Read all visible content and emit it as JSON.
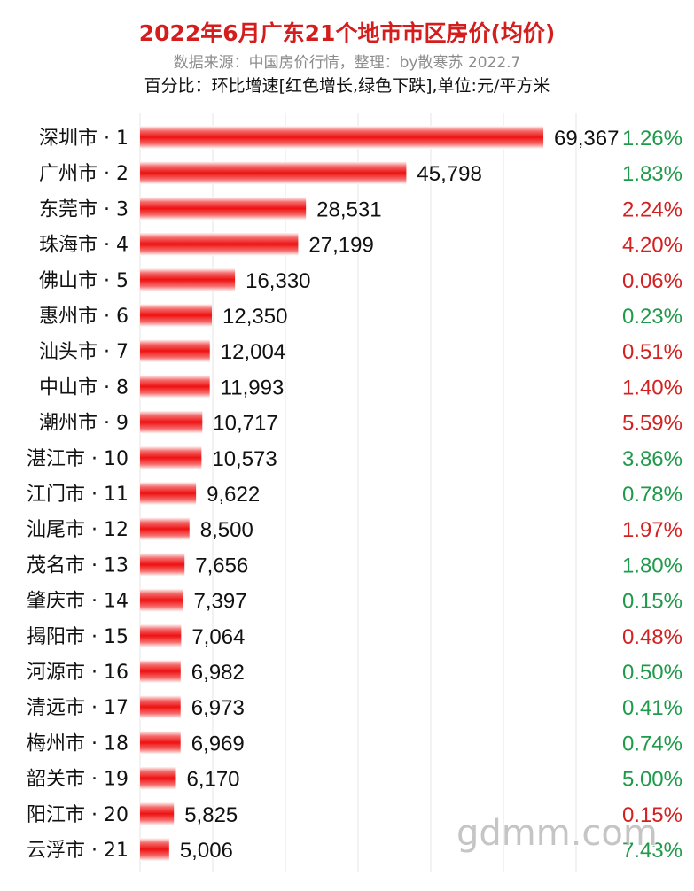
{
  "header": {
    "title": "2022年6月广东21个地市市区房价(均价)",
    "subtitle": "数据来源：中国房价行情，整理：by散寒苏 2022.7",
    "note": "百分比：环比增速[红色增长,绿色下跌],单位:元/平方米"
  },
  "watermark": "gdmm.com",
  "colors": {
    "bar": "#f01a1a",
    "increase": "#d42020",
    "decrease": "#1f9a4a",
    "grid": "#e6e6e6"
  },
  "chart_data": {
    "type": "bar",
    "orientation": "horizontal",
    "title": "2022年6月广东21个地市市区房价(均价)",
    "unit": "元/平方米",
    "grid": true,
    "xlim": [
      0,
      75000
    ],
    "categories": [
      "深圳市 · 1",
      "广州市 · 2",
      "东莞市 · 3",
      "珠海市 · 4",
      "佛山市 · 5",
      "惠州市 · 6",
      "汕头市 · 7",
      "中山市 · 8",
      "潮州市 · 9",
      "湛江市 · 10",
      "江门市 · 11",
      "汕尾市 · 12",
      "茂名市 · 13",
      "肇庆市 · 14",
      "揭阳市 · 15",
      "河源市 · 16",
      "清远市 · 17",
      "梅州市 · 18",
      "韶关市 · 19",
      "阳江市 · 20",
      "云浮市 · 21"
    ],
    "values": [
      69367,
      45798,
      28531,
      27199,
      16330,
      12350,
      12004,
      11993,
      10717,
      10573,
      9622,
      8500,
      7656,
      7397,
      7064,
      6982,
      6973,
      6969,
      6170,
      5825,
      5006
    ],
    "value_labels": [
      "69,367",
      "45,798",
      "28,531",
      "27,199",
      "16,330",
      "12,350",
      "12,004",
      "11,993",
      "10,717",
      "10,573",
      "9,622",
      "8,500",
      "7,656",
      "7,397",
      "7,064",
      "6,982",
      "6,973",
      "6,969",
      "6,170",
      "5,825",
      "5,006"
    ],
    "mom_change": [
      "1.26%",
      "1.83%",
      "2.24%",
      "4.20%",
      "0.06%",
      "0.23%",
      "0.51%",
      "1.40%",
      "5.59%",
      "3.86%",
      "0.78%",
      "1.97%",
      "1.80%",
      "0.15%",
      "0.48%",
      "0.50%",
      "0.41%",
      "0.74%",
      "5.00%",
      "0.15%",
      "7.43%"
    ],
    "mom_direction": [
      "down",
      "down",
      "up",
      "up",
      "up",
      "down",
      "up",
      "up",
      "up",
      "down",
      "down",
      "up",
      "down",
      "down",
      "up",
      "down",
      "down",
      "down",
      "down",
      "up",
      "down"
    ]
  }
}
